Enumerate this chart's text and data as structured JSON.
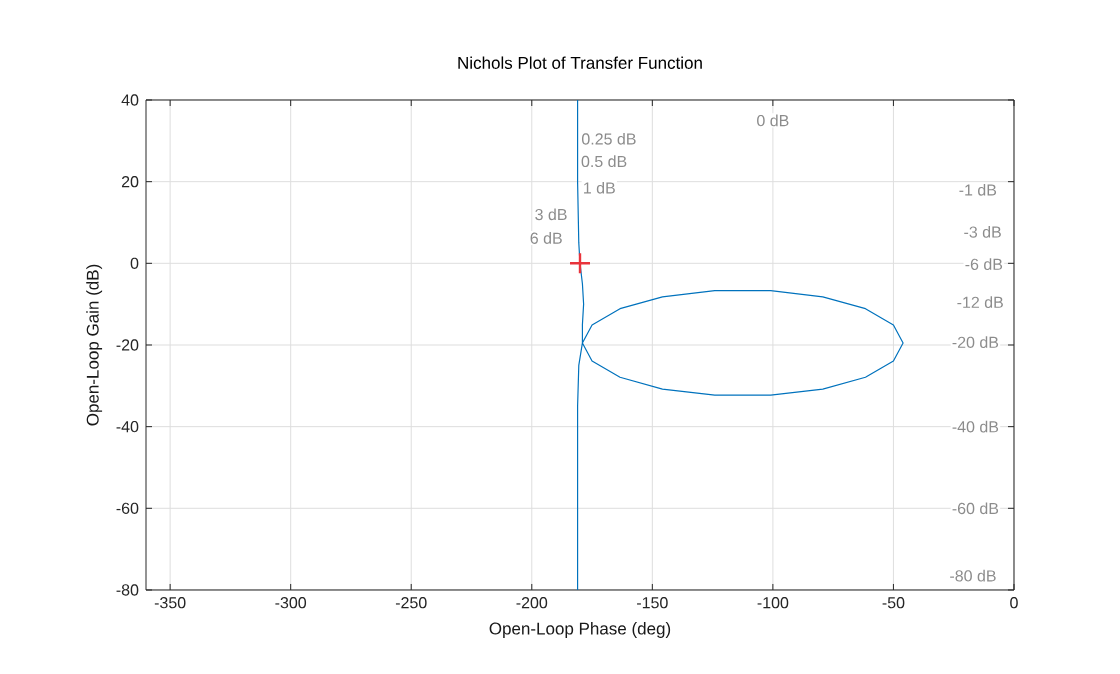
{
  "chart_data": {
    "type": "line",
    "title": "Nichols Plot of Transfer Function",
    "xlabel": "Open-Loop Phase (deg)",
    "ylabel": "Open-Loop Gain (dB)",
    "xlim": [
      -360,
      0
    ],
    "ylim": [
      -80,
      40
    ],
    "xticks": [
      -350,
      -300,
      -250,
      -200,
      -150,
      -100,
      -50,
      0
    ],
    "yticks": [
      -80,
      -60,
      -40,
      -20,
      0,
      20,
      40
    ],
    "grid": true,
    "line_style": "solid",
    "series": [
      {
        "color": "#0072bd",
        "x": [
          -181,
          -181,
          -180.5,
          -180,
          -179,
          -178.5,
          -179,
          -179,
          -175,
          -163.4,
          -145.8,
          -124.1,
          -100.9,
          -79.3,
          -61.6,
          -50,
          -46,
          -50,
          -61.6,
          -79.3,
          -100.9,
          -124.1,
          -145.8,
          -163.4,
          -175,
          -179,
          -180.5,
          -181,
          -181
        ],
        "values": [
          40,
          20,
          5,
          0,
          -5,
          -10,
          -15,
          -19.5,
          -15.1,
          -11.1,
          -8.2,
          -6.7,
          -6.7,
          -8.2,
          -11.1,
          -15.1,
          -19.5,
          -23.9,
          -27.9,
          -30.8,
          -32.3,
          -32.3,
          -30.8,
          -27.9,
          -23.9,
          -19.5,
          -25,
          -35,
          -80
        ]
      },
      {
        "type": "scatter",
        "marker": "cross",
        "color": "#e8333b",
        "x": [
          -180
        ],
        "values": [
          0
        ]
      }
    ],
    "annotations": [
      "0 dB",
      "0.25 dB",
      "0.5 dB",
      "1 dB",
      "3 dB",
      "6 dB",
      "-1 dB",
      "-3 dB",
      "-6 dB",
      "-12 dB",
      "-20 dB",
      "-40 dB",
      "-60 dB",
      "-80 dB"
    ]
  }
}
